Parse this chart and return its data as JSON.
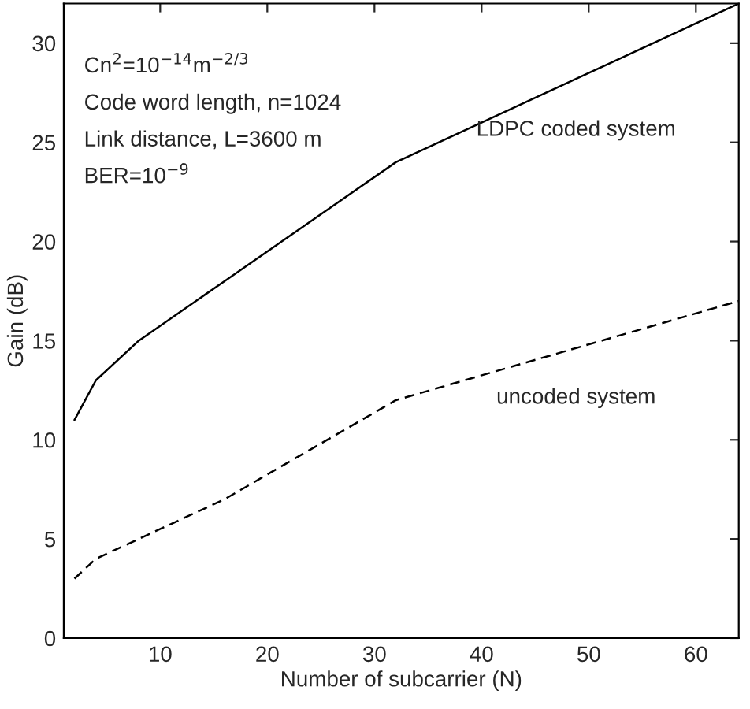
{
  "chart_data": {
    "type": "line",
    "xlabel": "Number of subcarrier (N)",
    "ylabel": "Gain (dB)",
    "x": [
      2,
      4,
      8,
      16,
      32,
      64
    ],
    "series": [
      {
        "name": "LDPC coded system",
        "color": "#000000",
        "line_style": "solid",
        "values": [
          11,
          13,
          15,
          18,
          24,
          32
        ]
      },
      {
        "name": "uncoded system",
        "color": "#000000",
        "line_style": "dashed",
        "values": [
          3,
          4,
          5,
          7,
          12,
          17
        ]
      }
    ],
    "xlim": [
      1,
      64
    ],
    "ylim": [
      0,
      32
    ],
    "xticks": [
      10,
      20,
      30,
      40,
      50,
      60
    ],
    "yticks": [
      0,
      5,
      10,
      15,
      20,
      25,
      30
    ],
    "grid": false,
    "legend": false,
    "marker": "none",
    "annotations": [
      "Cn$^{2}$=10$^{−14}$m$^{−2/3}$",
      "Code word length, n=1024",
      "Link distance, L=3600 m",
      "BER=10$^{−9}$"
    ]
  }
}
